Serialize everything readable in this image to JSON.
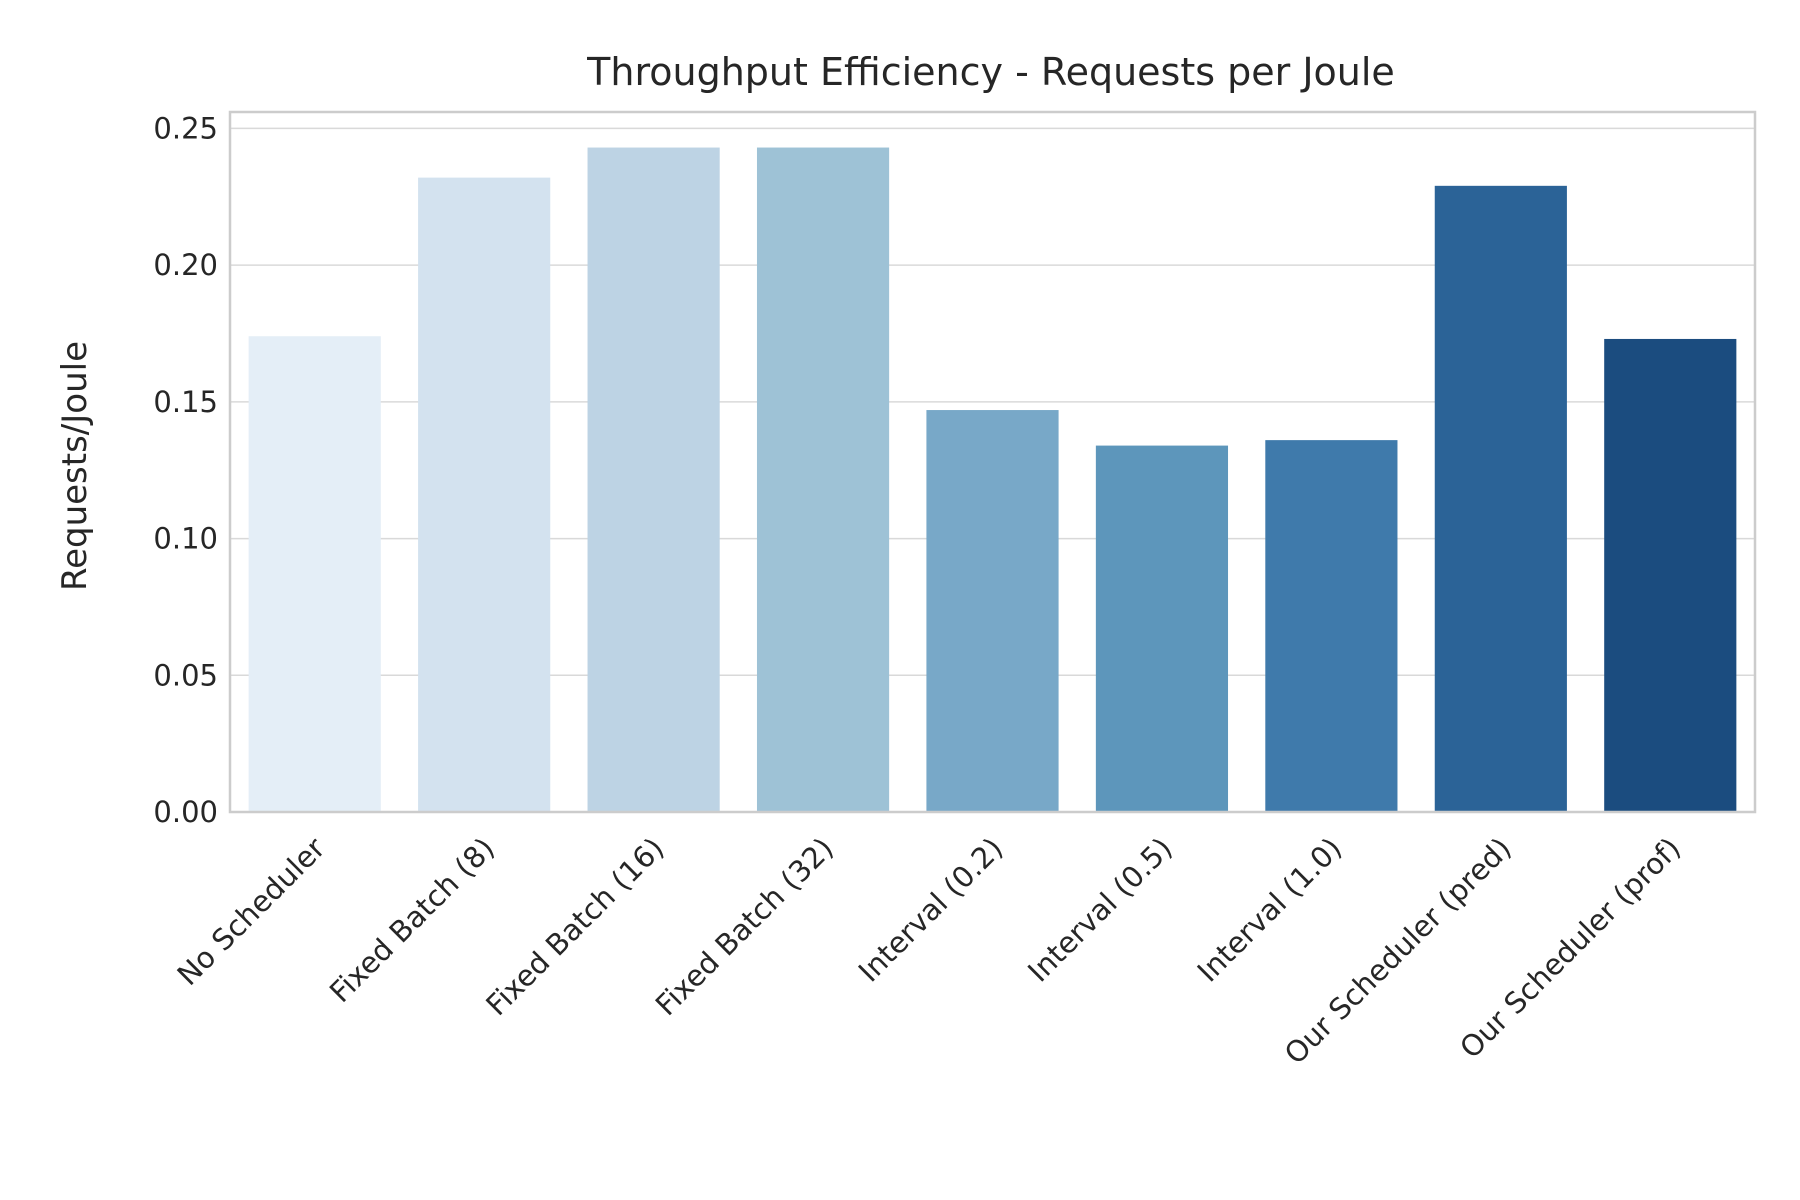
{
  "chart_data": {
    "type": "bar",
    "title": "Throughput Efficiency - Requests per Joule",
    "xlabel": "",
    "ylabel": "Requests/Joule",
    "ylim": [
      0,
      0.256
    ],
    "yticks": [
      "0.00",
      "0.05",
      "0.10",
      "0.15",
      "0.20",
      "0.25"
    ],
    "grid": true,
    "categories": [
      "No Scheduler",
      "Fixed Batch (8)",
      "Fixed Batch (16)",
      "Fixed Batch (32)",
      "Interval (0.2)",
      "Interval (0.5)",
      "Interval (1.0)",
      "Our Scheduler (pred)",
      "Our Scheduler (prof)"
    ],
    "values": [
      0.174,
      0.232,
      0.243,
      0.243,
      0.147,
      0.134,
      0.136,
      0.229,
      0.173
    ],
    "colors": [
      "#e4eef7",
      "#d3e2ef",
      "#bdd3e4",
      "#9ec2d6",
      "#78a8c8",
      "#5d96bb",
      "#3f7aab",
      "#2b6397",
      "#1b4c7f"
    ]
  }
}
